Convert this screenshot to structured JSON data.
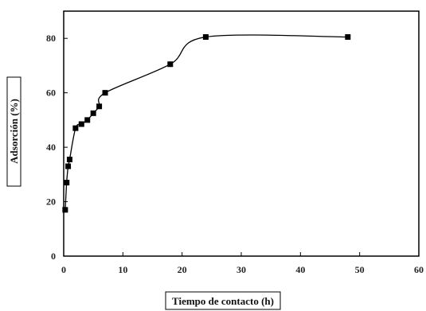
{
  "chart_data": {
    "type": "line",
    "title": "",
    "xlabel": "Tiempo de contacto (h)",
    "ylabel": "Adsorción (%)",
    "xlim": [
      0,
      60
    ],
    "ylim": [
      0,
      90
    ],
    "x_ticks": [
      0,
      10,
      20,
      30,
      40,
      50,
      60
    ],
    "y_ticks": [
      0,
      20,
      40,
      60,
      80
    ],
    "grid": false,
    "legend": "none",
    "smooth": true,
    "series": [
      {
        "color": "#000000",
        "marker": "square",
        "x": [
          0.25,
          0.5,
          0.75,
          1,
          2,
          3,
          4,
          5,
          6,
          7,
          18,
          24,
          48
        ],
        "y": [
          17,
          27,
          33,
          35.5,
          47,
          48.5,
          50,
          52.5,
          55,
          60,
          70.5,
          80.5,
          80.5
        ]
      }
    ]
  }
}
